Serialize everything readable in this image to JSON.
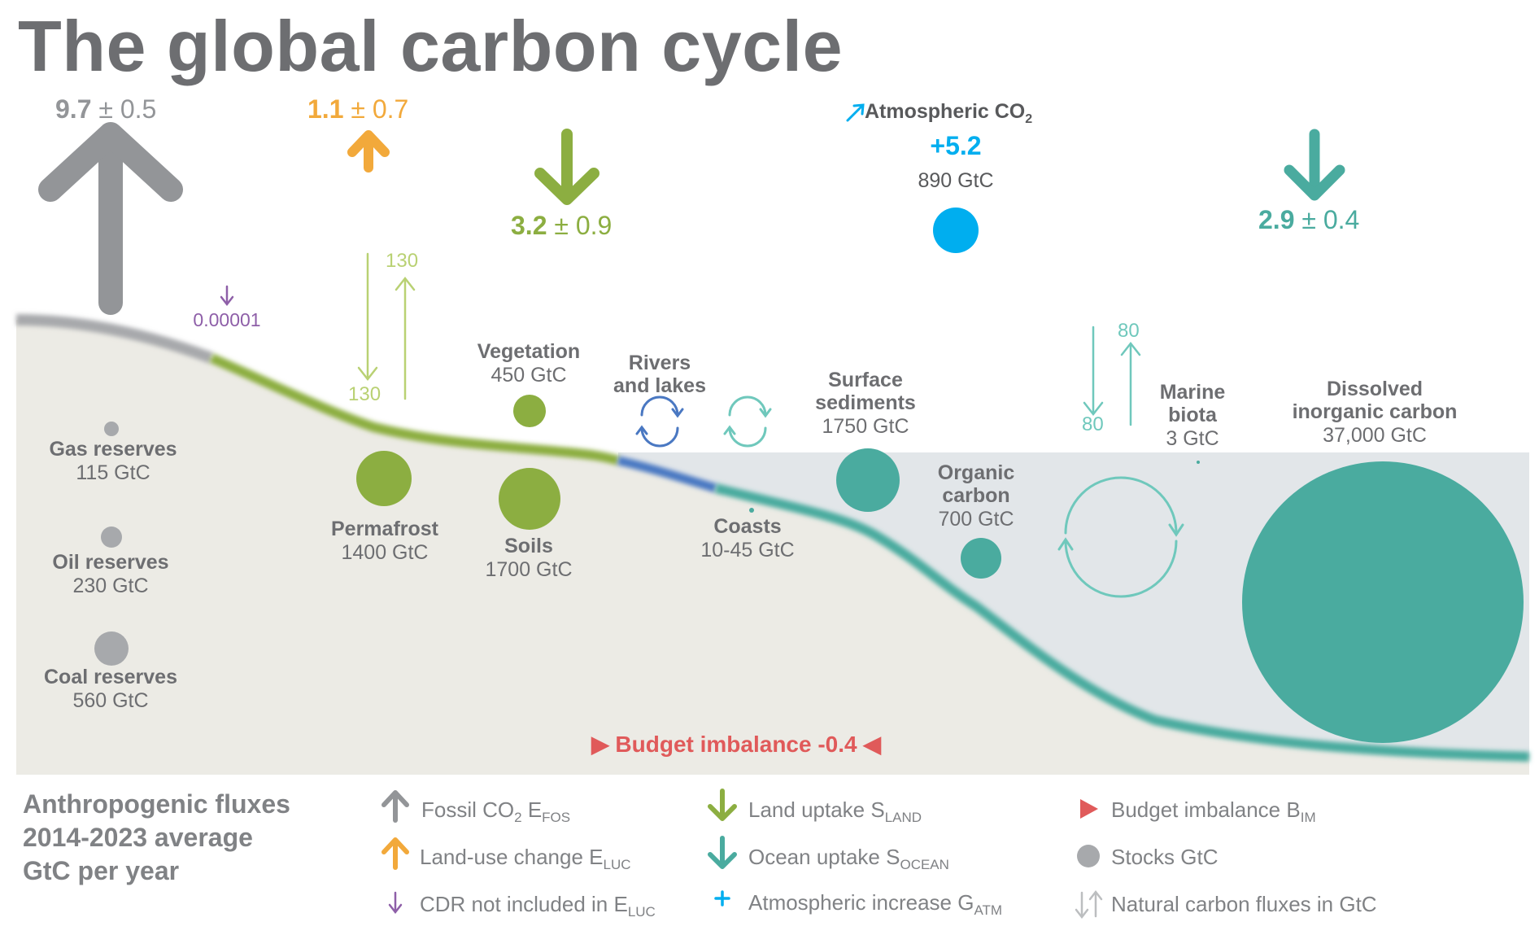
{
  "title": "The global carbon cycle",
  "fluxes": {
    "fossil": {
      "value": "9.7",
      "unc": "± 0.5"
    },
    "luc": {
      "value": "1.1",
      "unc": "± 0.7"
    },
    "land": {
      "value": "3.2",
      "unc": "± 0.9"
    },
    "atm": {
      "label": "Atmospheric CO",
      "sub": "2",
      "value": "+5.2",
      "stock": "890 GtC"
    },
    "ocean": {
      "value": "2.9",
      "unc": "± 0.4"
    },
    "cdr": {
      "value": "0.00001"
    },
    "imbalance": {
      "left": "▶",
      "label": "Budget imbalance -0.4",
      "right": "◀"
    }
  },
  "natural": {
    "land_up": "130",
    "land_down": "130",
    "ocean_up": "80",
    "ocean_down": "80"
  },
  "stocks": {
    "gas": {
      "name": "Gas reserves",
      "value": "115 GtC"
    },
    "oil": {
      "name": "Oil reserves",
      "value": "230 GtC"
    },
    "coal": {
      "name": "Coal reserves",
      "value": "560 GtC"
    },
    "permafrost": {
      "name": "Permafrost",
      "value": "1400 GtC"
    },
    "vegetation": {
      "name": "Vegetation",
      "value": "450 GtC"
    },
    "soils": {
      "name": "Soils",
      "value": "1700 GtC"
    },
    "rivers": {
      "name1": "Rivers",
      "name2": "and lakes"
    },
    "coasts": {
      "name": "Coasts",
      "value": "10-45 GtC"
    },
    "surface_sediments": {
      "name1": "Surface",
      "name2": "sediments",
      "value": "1750 GtC"
    },
    "organic_carbon": {
      "name1": "Organic",
      "name2": "carbon",
      "value": "700 GtC"
    },
    "marine_biota": {
      "name1": "Marine",
      "name2": "biota",
      "value": "3 GtC"
    },
    "dic": {
      "name1": "Dissolved",
      "name2": "inorganic carbon",
      "value": "37,000 GtC"
    }
  },
  "legend": {
    "title": [
      "Anthropogenic fluxes",
      "2014-2023 average",
      "GtC per year"
    ],
    "fossil": {
      "text": "Fossil CO",
      "sub1": "2",
      "text2": " E",
      "sub2": "FOS"
    },
    "luc": {
      "text": "Land-use change E",
      "sub": "LUC"
    },
    "cdr": {
      "text": "CDR not included in E",
      "sub": "LUC"
    },
    "land": {
      "text": "Land uptake S",
      "sub": "LAND"
    },
    "ocean": {
      "text": "Ocean uptake S",
      "sub": "OCEAN"
    },
    "atm": {
      "text": "Atmospheric increase G",
      "sub": "ATM"
    },
    "imbalance": {
      "text": "Budget imbalance B",
      "sub": "IM"
    },
    "stocks": {
      "text": "Stocks GtC"
    },
    "natural": {
      "text": "Natural carbon fluxes in GtC"
    }
  },
  "colors": {
    "fossil": "#939598",
    "luc": "#f2a93b",
    "cdr": "#8e5fa8",
    "land": "#8cae41",
    "land_natural": "#b9d173",
    "ocean": "#4aab9f",
    "ocean_natural": "#6fc8bc",
    "atm": "#00aeef",
    "imbalance": "#e05a5a",
    "rivers": "#4a78c2",
    "ground": "#ecebe5",
    "water": "#e2e6e9"
  }
}
